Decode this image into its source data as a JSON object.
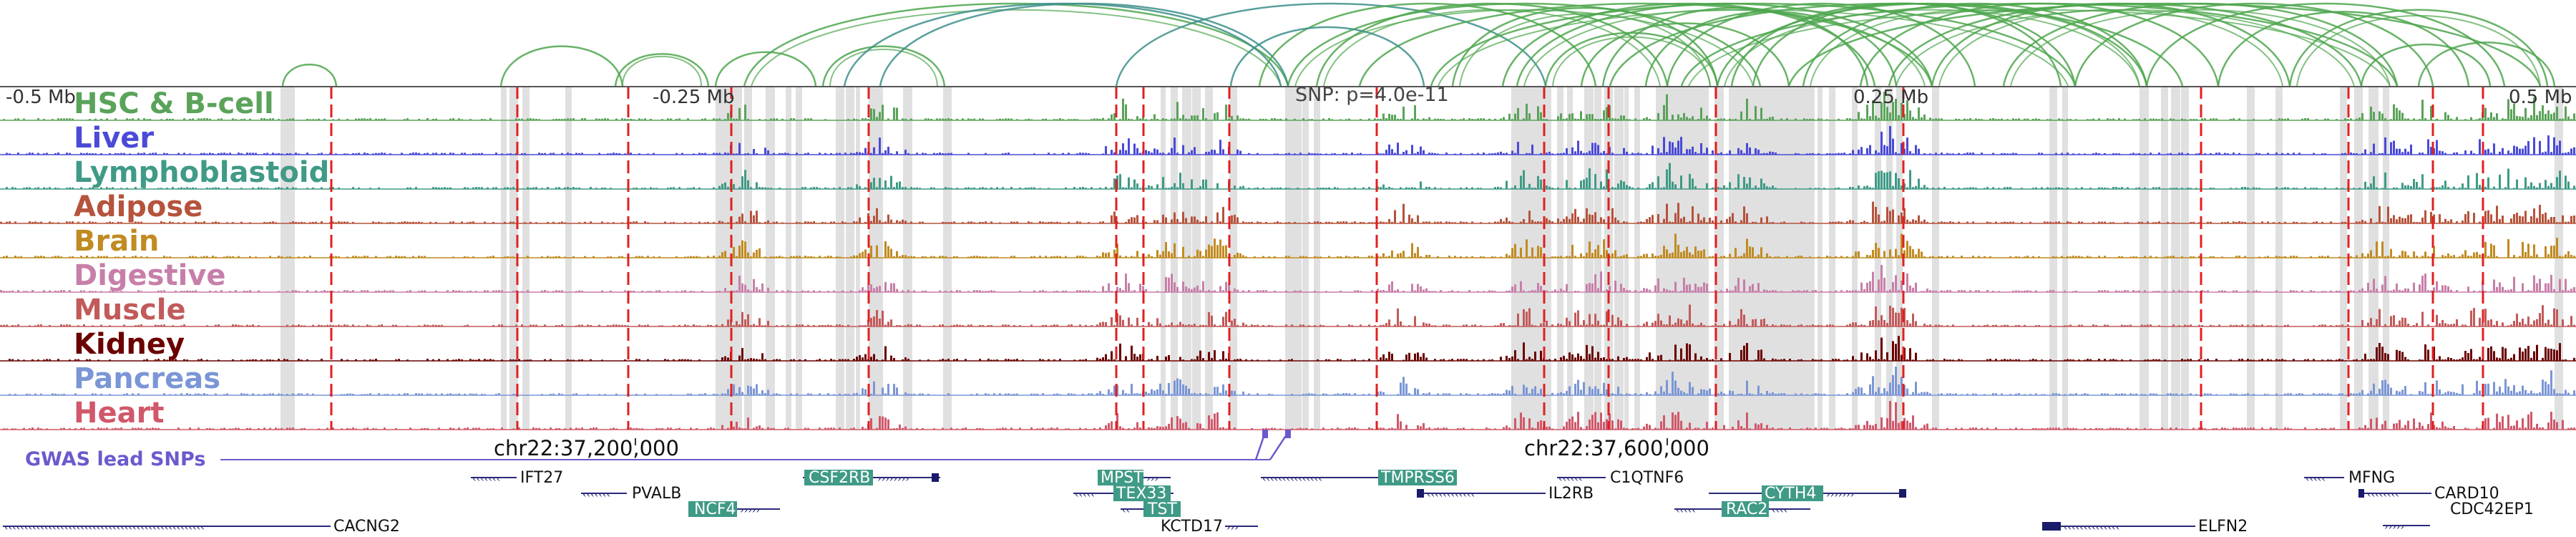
{
  "scale_labels": [
    "-0.5 Mb",
    "-0.25 Mb",
    "SNP: p=4.0e-11",
    "0.25 Mb",
    "0.5 Mb"
  ],
  "tracks": [
    {
      "name": "HSC & B-cell",
      "color": "#5aa35a"
    },
    {
      "name": "Liver",
      "color": "#4a4ad8"
    },
    {
      "name": "Lymphoblastoid",
      "color": "#3f9a86"
    },
    {
      "name": "Adipose",
      "color": "#b5533c"
    },
    {
      "name": "Brain",
      "color": "#c08b20"
    },
    {
      "name": "Digestive",
      "color": "#c77fa9"
    },
    {
      "name": "Muscle",
      "color": "#c25a5a"
    },
    {
      "name": "Kidney",
      "color": "#6a0000"
    },
    {
      "name": "Pancreas",
      "color": "#7b96d6"
    },
    {
      "name": "Heart",
      "color": "#d0586a"
    }
  ],
  "gwas": {
    "label": "GWAS lead SNPs",
    "color": "#6a5acd"
  },
  "coordinates": [
    "chr22:37,200,000",
    "chr22:37,600,000"
  ],
  "genes": [
    {
      "name": "IFT27",
      "highlighted": false
    },
    {
      "name": "PVALB",
      "highlighted": false
    },
    {
      "name": "NCF4",
      "highlighted": true
    },
    {
      "name": "CACNG2",
      "highlighted": false
    },
    {
      "name": "CSF2RB",
      "highlighted": true
    },
    {
      "name": "MPST",
      "highlighted": true
    },
    {
      "name": "TEX33",
      "highlighted": true
    },
    {
      "name": "TST",
      "highlighted": true
    },
    {
      "name": "KCTD17",
      "highlighted": false
    },
    {
      "name": "TMPRSS6",
      "highlighted": true
    },
    {
      "name": "C1QTNF6",
      "highlighted": false
    },
    {
      "name": "IL2RB",
      "highlighted": false
    },
    {
      "name": "CYTH4",
      "highlighted": true
    },
    {
      "name": "RAC2",
      "highlighted": true
    },
    {
      "name": "ELFN2",
      "highlighted": false
    },
    {
      "name": "MFNG",
      "highlighted": false
    },
    {
      "name": "CARD10",
      "highlighted": false
    },
    {
      "name": "CDC42EP1",
      "highlighted": false
    }
  ],
  "colors": {
    "arc": "#4ea64e",
    "arc_teal": "#3d8f8a",
    "highlight_band": "#e0e0e0",
    "snp_line": "#e02020",
    "gene_box": "#3f9a86",
    "gene_line": "#2a2a7a"
  }
}
